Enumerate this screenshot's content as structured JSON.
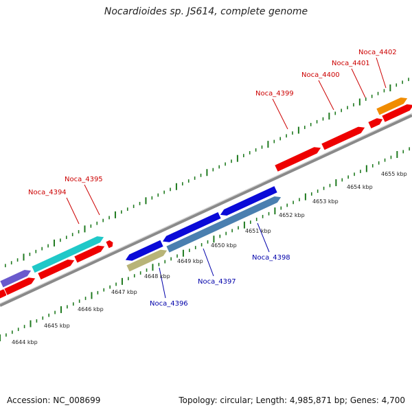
{
  "title": "Nocardioides sp. JS614, complete genome",
  "footer": {
    "accession": "Accession: NC_008699",
    "stats": "Topology: circular; Length: 4,985,871 bp; Genes: 4,700"
  },
  "colors": {
    "backbone": "#8a8a8a",
    "tick": "#1f7a1f",
    "gene_red": "#ee0000",
    "gene_orange": "#f08c00",
    "gene_cyan": "#20c8c8",
    "gene_blue": "#0a0ad8",
    "gene_steel": "#4a7fb0",
    "gene_olive": "#b8b478",
    "gene_purple": "#6a5acd",
    "label_red": "#cc0000",
    "label_blue": "#0000aa"
  },
  "scale_labels": [
    "4644 kbp",
    "4645 kbp",
    "4646 kbp",
    "4647 kbp",
    "4648 kbp",
    "4649 kbp",
    "4650 kbp",
    "4651 kbp",
    "4652 kbp",
    "4653 kbp",
    "4654 kbp",
    "4655 kbp"
  ],
  "labels_top": [
    "Noca_4394",
    "Noca_4395",
    "Noca_4399",
    "Noca_4400",
    "Noca_4401",
    "Noca_4402"
  ],
  "labels_bottom": [
    "Noca_4396",
    "Noca_4397",
    "Noca_4398"
  ]
}
